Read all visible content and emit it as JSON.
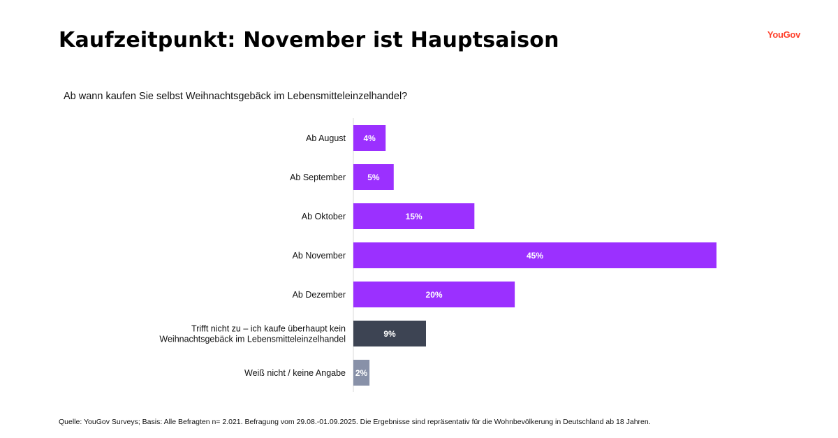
{
  "header": {
    "title": "Kaufzeitpunkt: November ist Hauptsaison",
    "logo": "YouGov",
    "logo_color": "#ff412c"
  },
  "question": "Ab wann kaufen Sie selbst Weihnachtsgebäck im Lebensmitteleinzelhandel?",
  "chart_data": {
    "type": "bar",
    "orientation": "horizontal",
    "title": "",
    "xlabel": "",
    "ylabel": "",
    "xlim": [
      0,
      45
    ],
    "grid": false,
    "legend": "none",
    "categories": [
      "Ab August",
      "Ab September",
      "Ab Oktober",
      "Ab November",
      "Ab Dezember",
      "Trifft nicht zu – ich kaufe überhaupt kein Weihnachtsgebäck im Lebensmitteleinzelhandel",
      "Weiß nicht / keine Angabe"
    ],
    "values": [
      4,
      5,
      15,
      45,
      20,
      9,
      2
    ],
    "data_labels": [
      "4%",
      "5%",
      "15%",
      "45%",
      "20%",
      "9%",
      "2%"
    ],
    "colors": [
      "#9b30ff",
      "#9b30ff",
      "#9b30ff",
      "#9b30ff",
      "#9b30ff",
      "#3d4453",
      "#8891a8"
    ]
  },
  "footnote": "Quelle: YouGov Surveys; Basis: Alle Befragten n= 2.021. Befragung vom 29.08.-01.09.2025. Die Ergebnisse sind repräsentativ für die Wohnbevölkerung in Deutschland ab 18 Jahren."
}
